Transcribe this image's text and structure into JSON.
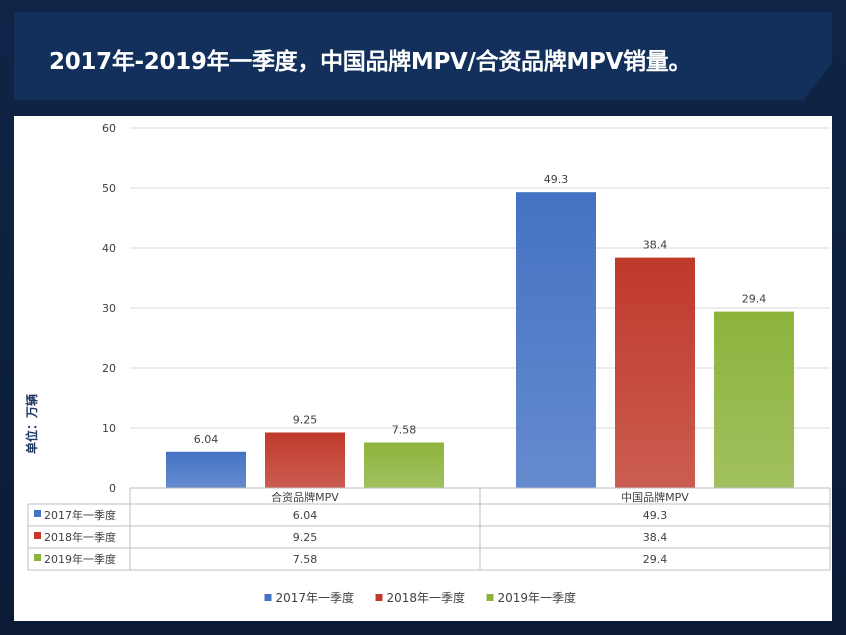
{
  "title": "2017年-2019年一季度，中国品牌MPV/合资品牌MPV销量。",
  "chart_data": {
    "type": "bar",
    "ylabel": "单位：万辆",
    "ylim": [
      0,
      60
    ],
    "yticks": [
      0,
      10,
      20,
      30,
      40,
      50,
      60
    ],
    "grid": true,
    "legend_position": "bottom",
    "categories": [
      "合资品牌MPV",
      "中国品牌MPV"
    ],
    "series": [
      {
        "name": "2017年一季度",
        "color": "#4472C4",
        "values": [
          6.04,
          49.3
        ],
        "labels": [
          "6.04",
          "49.3"
        ]
      },
      {
        "name": "2018年一季度",
        "color": "#C0392B",
        "values": [
          9.25,
          38.4
        ],
        "labels": [
          "9.25",
          "38.4"
        ]
      },
      {
        "name": "2019年一季度",
        "color": "#8DB33C",
        "values": [
          7.58,
          29.4
        ],
        "labels": [
          "7.58",
          "29.4"
        ]
      }
    ]
  }
}
